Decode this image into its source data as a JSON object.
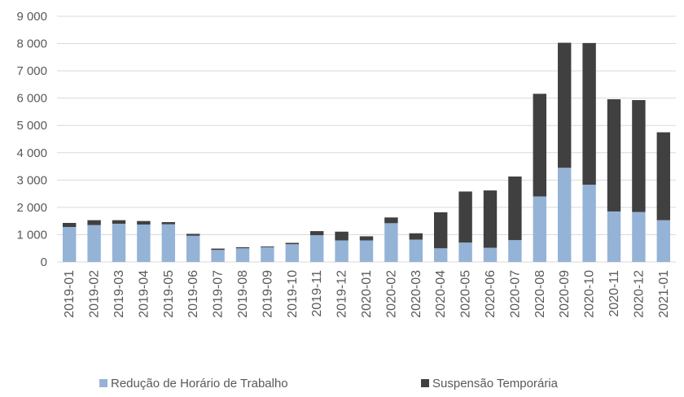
{
  "chart_data": {
    "type": "stacked_bar",
    "categories": [
      "2019-01",
      "2019-02",
      "2019-03",
      "2019-04",
      "2019-05",
      "2019-06",
      "2019-07",
      "2019-08",
      "2019-09",
      "2019-10",
      "2019-11",
      "2019-12",
      "2020-01",
      "2020-02",
      "2020-03",
      "2020-04",
      "2020-05",
      "2020-06",
      "2020-07",
      "2020-08",
      "2020-09",
      "2020-10",
      "2020-11",
      "2020-12",
      "2021-01"
    ],
    "series": [
      {
        "name": "Redução de Horário de Trabalho",
        "color": "#95b3d7",
        "values": [
          1280,
          1350,
          1400,
          1370,
          1380,
          960,
          440,
          500,
          540,
          650,
          980,
          790,
          790,
          1420,
          820,
          500,
          710,
          520,
          800,
          2400,
          3450,
          2830,
          1850,
          1830,
          1530
        ]
      },
      {
        "name": "Suspensão Temporária",
        "color": "#404040",
        "values": [
          150,
          180,
          130,
          130,
          80,
          70,
          50,
          40,
          30,
          50,
          150,
          320,
          150,
          210,
          230,
          1320,
          1870,
          2100,
          2330,
          3760,
          4580,
          5190,
          4110,
          4100,
          3220
        ]
      }
    ],
    "ylim": [
      0,
      9000
    ],
    "yticks": [
      0,
      {
        "value": 1000,
        "label": "1 000"
      },
      {
        "value": 2000,
        "label": "2 000"
      },
      {
        "value": 3000,
        "label": "3 000"
      },
      {
        "value": 4000,
        "label": "4 000"
      },
      {
        "value": 5000,
        "label": "5 000"
      },
      {
        "value": 6000,
        "label": "6 000"
      },
      {
        "value": 7000,
        "label": "7 000"
      },
      {
        "value": 8000,
        "label": "8 000"
      },
      {
        "value": 9000,
        "label": "9 000"
      }
    ],
    "grid": true,
    "legend": "bottom"
  }
}
